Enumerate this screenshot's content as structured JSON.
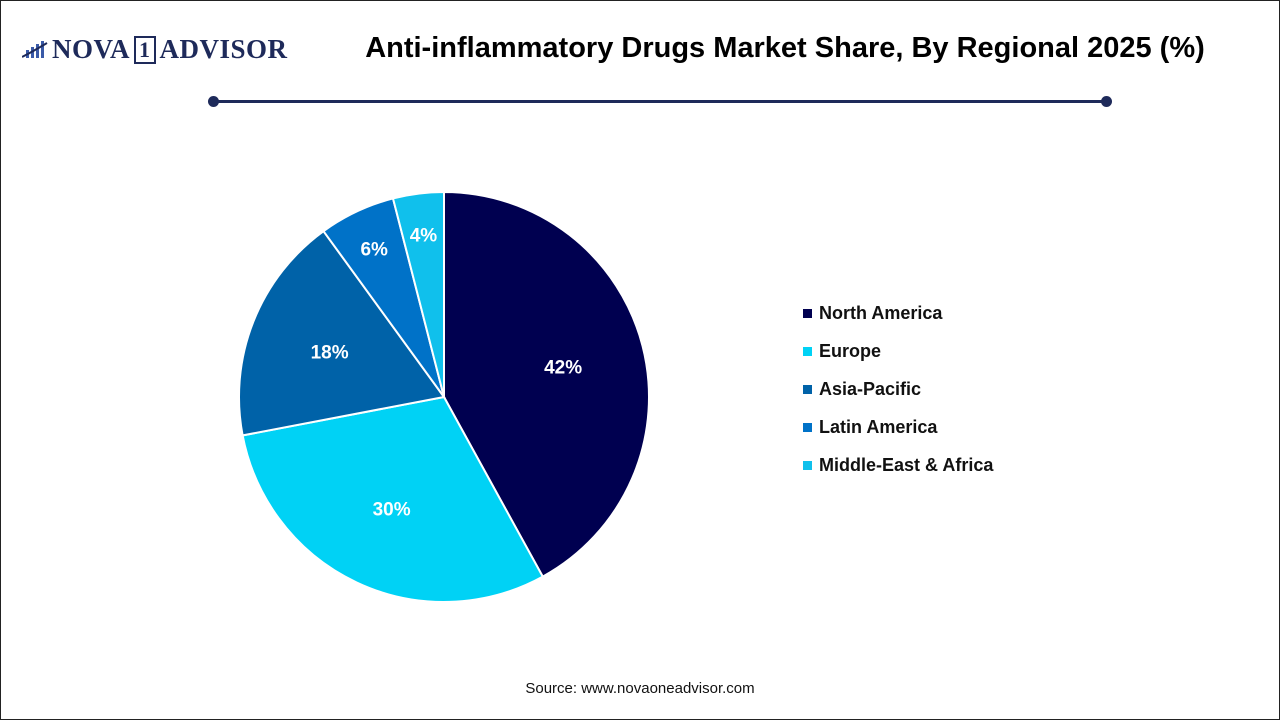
{
  "logo": {
    "text": "NOVA",
    "box_char": "1",
    "text2": "ADVISOR"
  },
  "title": "Anti-inflammatory Drugs Market Share, By Regional 2025 (%)",
  "source": "Source: www.novaoneadvisor.com",
  "chart_data": {
    "type": "pie",
    "title": "Anti-inflammatory Drugs Market Share, By Regional 2025 (%)",
    "start_angle": "top, clockwise",
    "legend_position": "right",
    "slices": [
      {
        "label": "North America",
        "value": 42,
        "display": "42%",
        "color": "#000050"
      },
      {
        "label": "Europe",
        "value": 30,
        "display": "30%",
        "color": "#00d2f5"
      },
      {
        "label": "Asia-Pacific",
        "value": 18,
        "display": "18%",
        "color": "#0062a8"
      },
      {
        "label": "Latin America",
        "value": 6,
        "display": "6%",
        "color": "#0072c8"
      },
      {
        "label": "Middle-East & Africa",
        "value": 4,
        "display": "4%",
        "color": "#10c0ec"
      }
    ]
  }
}
